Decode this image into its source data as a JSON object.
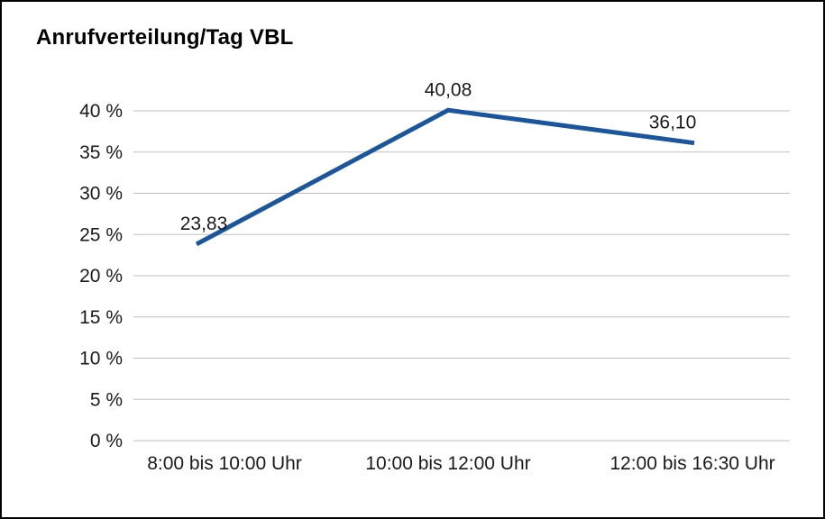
{
  "title": "Anrufverteilung/Tag VBL",
  "chart_data": {
    "type": "line",
    "title": "Anrufverteilung/Tag VBL",
    "categories": [
      "8:00 bis 10:00 Uhr",
      "10:00 bis 12:00 Uhr",
      "12:00 bis 16:30 Uhr"
    ],
    "values": [
      23.83,
      40.08,
      36.1
    ],
    "value_labels": [
      "23,83",
      "40,08",
      "36,10"
    ],
    "xlabel": "",
    "ylabel": "",
    "ylim": [
      0,
      40
    ],
    "ytick_step": 5,
    "ytick_suffix": " %",
    "grid": true,
    "legend": false,
    "colors": {
      "line": "#1a569e",
      "gridline": "#bfbfbf",
      "text": "#1a1a1a",
      "border": "#000000",
      "background": "#ffffff"
    }
  }
}
